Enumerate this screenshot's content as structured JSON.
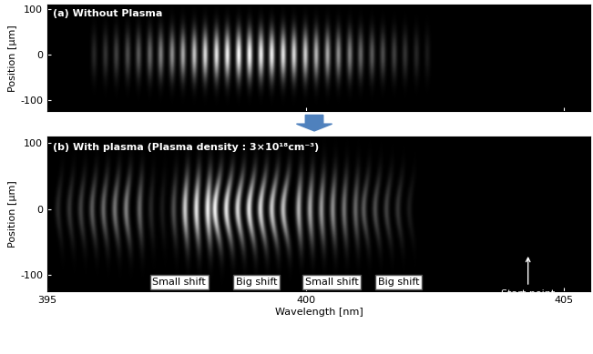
{
  "chart_data": [
    {
      "type": "image",
      "title": "(a) Without Plasma",
      "ylabel": "Position [µm]",
      "xlim": [
        395,
        405.5
      ],
      "ylim": [
        -125,
        110
      ],
      "xticks": [
        395,
        400,
        405
      ],
      "yticks": [
        -100,
        0,
        100
      ],
      "tick_labels": "y",
      "beam_half_width": 50,
      "fringes": {
        "x": [
          395.9,
          396.12,
          396.33,
          396.55,
          396.76,
          396.98,
          397.19,
          397.41,
          397.62,
          397.84,
          398.05,
          398.27,
          398.48,
          398.7,
          398.91,
          399.13,
          399.34,
          399.56,
          399.77,
          399.99,
          400.2,
          400.42,
          400.63,
          400.85,
          401.06,
          401.28,
          401.49,
          401.71,
          401.92,
          402.14,
          402.35
        ],
        "intensity": [
          0.15,
          0.2,
          0.25,
          0.3,
          0.35,
          0.4,
          0.5,
          0.55,
          0.65,
          0.75,
          0.85,
          0.9,
          0.95,
          1.0,
          1.0,
          0.95,
          0.95,
          0.9,
          0.85,
          0.8,
          0.7,
          0.65,
          0.55,
          0.5,
          0.4,
          0.35,
          0.3,
          0.25,
          0.2,
          0.15,
          0.1
        ]
      }
    },
    {
      "type": "image",
      "title": "(b) With plasma (Plasma density : 3×10¹⁸cm⁻³)",
      "ylabel": "Position [µm]",
      "xlabel": "Wavelength [nm]",
      "xlim": [
        395,
        405.5
      ],
      "ylim": [
        -125,
        110
      ],
      "xticks": [
        395,
        400,
        405
      ],
      "yticks": [
        -100,
        0,
        100
      ],
      "beam_half_width": 50,
      "fringes": {
        "x": [
          395.3,
          395.52,
          395.74,
          395.96,
          396.18,
          396.4,
          396.62,
          396.84,
          397.06,
          397.28,
          397.5,
          397.72,
          397.94,
          398.16,
          398.38,
          398.6,
          398.82,
          399.04,
          399.26,
          399.48,
          399.7,
          399.92,
          400.14,
          400.36,
          400.58,
          400.8,
          401.02,
          401.24,
          401.46,
          401.68,
          401.9,
          402.12
        ],
        "intensity": [
          0.15,
          0.2,
          0.25,
          0.35,
          0.4,
          0.45,
          0.5,
          0.4,
          0.15,
          0.1,
          0.3,
          0.8,
          0.9,
          0.95,
          0.95,
          0.9,
          0.85,
          0.9,
          0.85,
          0.8,
          0.75,
          0.7,
          0.65,
          0.6,
          0.55,
          0.45,
          0.4,
          0.35,
          0.3,
          0.25,
          0.2,
          0.1
        ],
        "shift": [
          0.1,
          0.1,
          0.1,
          0.1,
          0.1,
          0.1,
          0.1,
          0.06,
          0.06,
          0.06,
          0.06,
          0.06,
          0.06,
          0.06,
          0.14,
          0.14,
          0.14,
          0.14,
          0.14,
          0.14,
          0.14,
          0.06,
          0.06,
          0.06,
          0.06,
          0.06,
          0.06,
          0.12,
          0.12,
          0.12,
          0.12,
          0.12
        ]
      },
      "regions": [
        {
          "label": "Small shift",
          "from": 396.8,
          "to": 398.3
        },
        {
          "label": "Big shift",
          "from": 398.3,
          "to": 399.8
        },
        {
          "label": "Small shift",
          "from": 399.8,
          "to": 401.2
        },
        {
          "label": "Big shift",
          "from": 401.2,
          "to": 402.4
        }
      ],
      "annotations": [
        {
          "text": "Start point",
          "x": 404.3,
          "y": -68
        }
      ]
    }
  ]
}
